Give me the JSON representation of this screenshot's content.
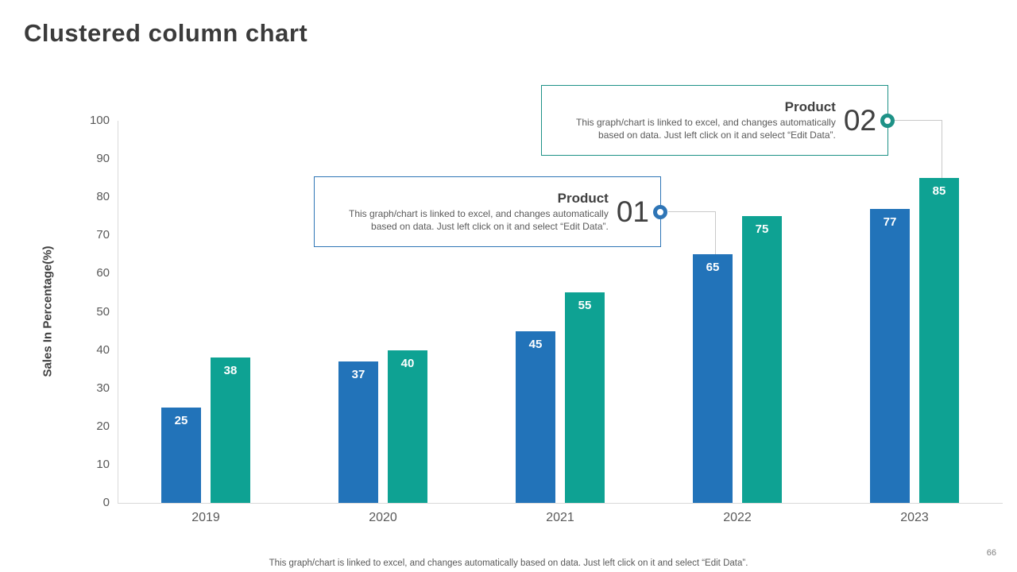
{
  "title": "Clustered column chart",
  "callouts": [
    {
      "heading": "Product",
      "number": "01",
      "body": "This graph/chart is linked to excel, and changes automatically based on data. Just left click on it and select “Edit Data”.",
      "accent": "#2e75b6"
    },
    {
      "heading": "Product",
      "number": "02",
      "body": "This graph/chart is linked to excel, and changes automatically based on data. Just left click on it and select “Edit Data”.",
      "accent": "#1e9287"
    }
  ],
  "footer": {
    "note": "This graph/chart is linked to excel,  and changes automatically based on data. Just left click on it and select “Edit Data”.",
    "page": "66"
  },
  "chart_data": {
    "type": "bar",
    "title": "",
    "categories": [
      "2019",
      "2020",
      "2021",
      "2022",
      "2023"
    ],
    "series": [
      {
        "name": "Product 01",
        "color": "#2273b9",
        "values": [
          25,
          37,
          45,
          65,
          77
        ]
      },
      {
        "name": "Product 02",
        "color": "#0ea293",
        "values": [
          38,
          40,
          55,
          75,
          85
        ]
      }
    ],
    "xlabel": "",
    "ylabel": "Sales In Percentage(%)",
    "ylim": [
      0,
      100
    ],
    "yticks": [
      0,
      10,
      20,
      30,
      40,
      50,
      60,
      70,
      80,
      90,
      100
    ],
    "grid": false,
    "legend": "none",
    "data_labels": true
  }
}
